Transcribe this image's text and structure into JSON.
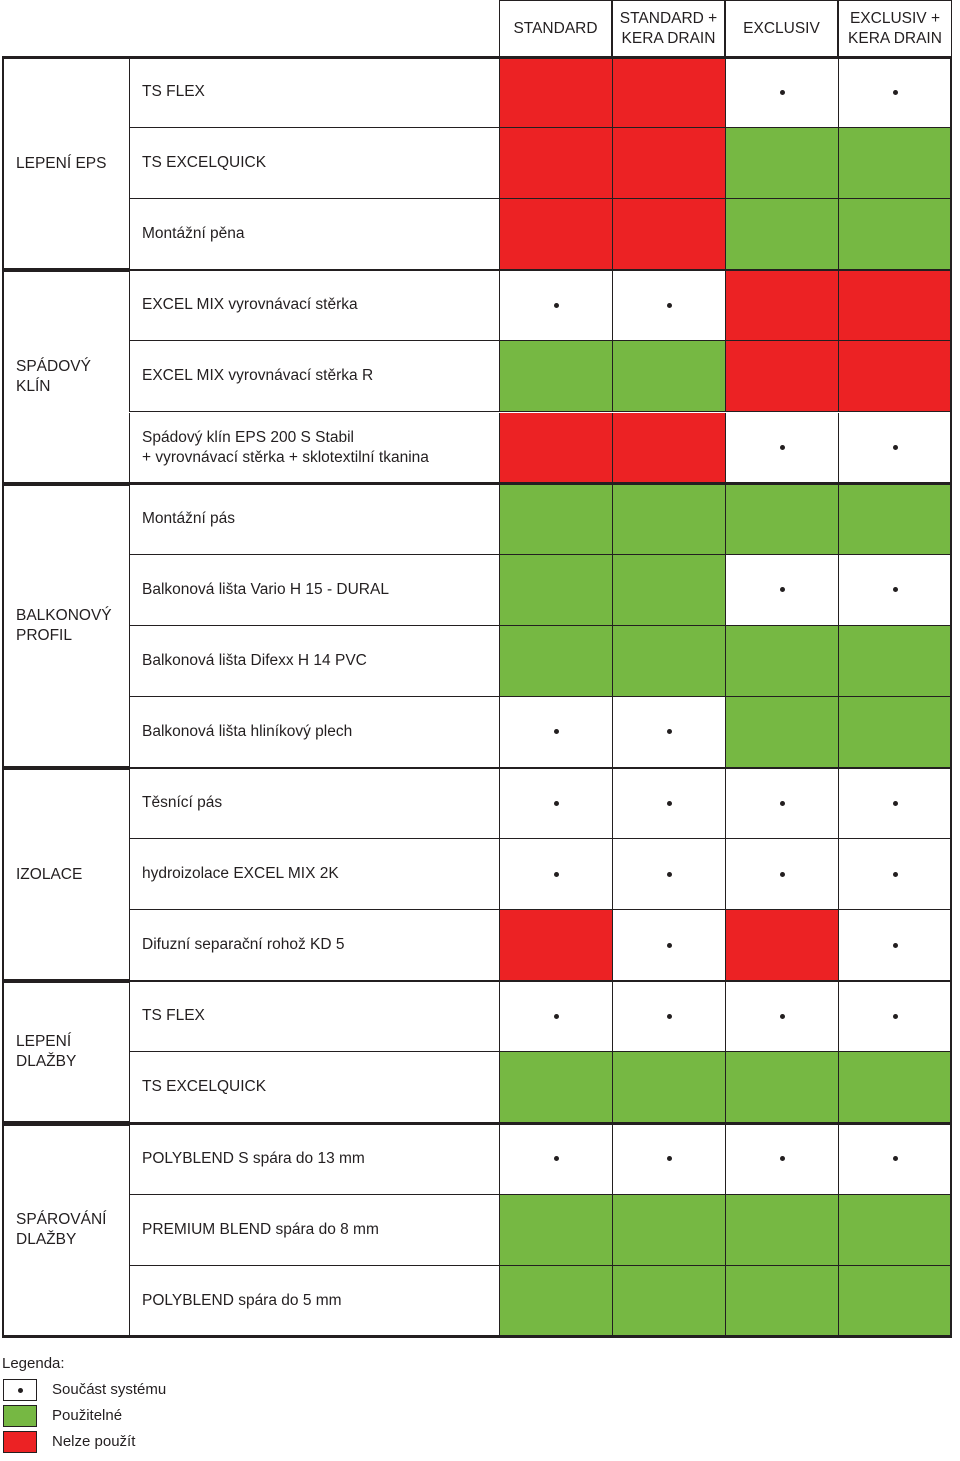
{
  "columns": [
    "STANDARD",
    "STANDARD +\nKERA DRAIN",
    "EXCLUSIV",
    "EXCLUSIV +\nKERA DRAIN"
  ],
  "groups": [
    {
      "label": "LEPENÍ EPS",
      "align": "center"
    },
    {
      "label": "SPÁDOVÝ KLÍN",
      "align": "center"
    },
    {
      "label": "BALKONOVÝ\nPROFIL",
      "align": "center"
    },
    {
      "label": "IZOLACE",
      "align": "center"
    },
    {
      "label": "LEPENÍ\nDLAŽBY",
      "align": "center"
    },
    {
      "label": "SPÁROVÁNÍ\nDLAŽBY",
      "align": "center"
    }
  ],
  "rows": [
    {
      "group": 0,
      "label": "TS FLEX",
      "cells": [
        "red",
        "red",
        "dot",
        "dot"
      ]
    },
    {
      "group": 0,
      "label": "TS EXCELQUICK",
      "cells": [
        "red",
        "red",
        "green",
        "green"
      ]
    },
    {
      "group": 0,
      "label": "Montážní pěna",
      "cells": [
        "red",
        "red",
        "green",
        "green"
      ]
    },
    {
      "group": 1,
      "label": "EXCEL MIX vyrovnávací stěrka",
      "cells": [
        "dot",
        "dot",
        "red",
        "red"
      ]
    },
    {
      "group": 1,
      "label": "EXCEL MIX vyrovnávací stěrka R",
      "cells": [
        "green",
        "green",
        "red",
        "red"
      ]
    },
    {
      "group": 1,
      "label": "Spádový klín EPS 200 S Stabil\n+ vyrovnávací stěrka + sklotextilní tkanina",
      "cells": [
        "red",
        "red",
        "dot",
        "dot"
      ]
    },
    {
      "group": 2,
      "label": "Montážní pás",
      "cells": [
        "green",
        "green",
        "green",
        "green"
      ]
    },
    {
      "group": 2,
      "label": "Balkonová lišta Vario H 15 - DURAL",
      "cells": [
        "green",
        "green",
        "dot",
        "dot"
      ]
    },
    {
      "group": 2,
      "label": "Balkonová lišta Difexx H 14 PVC",
      "cells": [
        "green",
        "green",
        "green",
        "green"
      ]
    },
    {
      "group": 2,
      "label": "Balkonová lišta hliníkový plech",
      "cells": [
        "dot",
        "dot",
        "green",
        "green"
      ]
    },
    {
      "group": 3,
      "label": "Těsnící pás",
      "cells": [
        "dot",
        "dot",
        "dot",
        "dot"
      ]
    },
    {
      "group": 3,
      "label": "hydroizolace EXCEL MIX 2K",
      "cells": [
        "dot",
        "dot",
        "dot",
        "dot"
      ]
    },
    {
      "group": 3,
      "label": "Difuzní separační rohož KD 5",
      "cells": [
        "red",
        "dot",
        "red",
        "dot"
      ]
    },
    {
      "group": 4,
      "label": "TS FLEX",
      "cells": [
        "dot",
        "dot",
        "dot",
        "dot"
      ]
    },
    {
      "group": 4,
      "label": "TS EXCELQUICK",
      "cells": [
        "green",
        "green",
        "green",
        "green"
      ]
    },
    {
      "group": 5,
      "label": "POLYBLEND S spára do 13 mm",
      "cells": [
        "dot",
        "dot",
        "dot",
        "dot"
      ]
    },
    {
      "group": 5,
      "label": "PREMIUM BLEND spára do 8 mm",
      "cells": [
        "green",
        "green",
        "green",
        "green"
      ]
    },
    {
      "group": 5,
      "label": "POLYBLEND spára do 5 mm",
      "cells": [
        "green",
        "green",
        "green",
        "green"
      ]
    }
  ],
  "legend": {
    "title": "Legenda:",
    "items": [
      {
        "kind": "dot",
        "label": "Součást systému"
      },
      {
        "kind": "green",
        "label": "Použitelné"
      },
      {
        "kind": "red",
        "label": "Nelze použít"
      }
    ]
  },
  "colors": {
    "red": "#ec2224",
    "green": "#76b843",
    "line": "#231f20"
  }
}
